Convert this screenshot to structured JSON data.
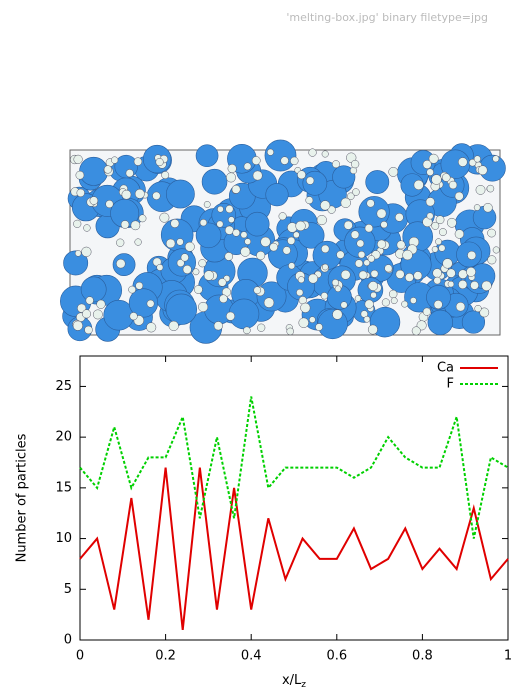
{
  "header": "'melting-box.jpg' binary filetype=jpg",
  "chart_data": {
    "type": "line",
    "ylabel": "Number of particles",
    "xlabel": {
      "text": "x/L",
      "subscript": "z"
    },
    "x": [
      0,
      0.04,
      0.08,
      0.12,
      0.16,
      0.2,
      0.24,
      0.28,
      0.32,
      0.36,
      0.4,
      0.44,
      0.48,
      0.52,
      0.56,
      0.6,
      0.64,
      0.68,
      0.72,
      0.76,
      0.8,
      0.84,
      0.88,
      0.92,
      0.96,
      1
    ],
    "series": [
      {
        "name": "Ca",
        "color": "#e00000",
        "dashed": false,
        "values": [
          8,
          10,
          3,
          14,
          2,
          17,
          1,
          17,
          3,
          15,
          3,
          12,
          6,
          10,
          8,
          8,
          11,
          7,
          8,
          11,
          7,
          9,
          7,
          13,
          6,
          8
        ]
      },
      {
        "name": "F",
        "color": "#00d000",
        "dashed": true,
        "values": [
          17,
          15,
          21,
          15,
          18,
          18,
          22,
          12,
          20,
          12,
          24,
          15,
          17,
          17,
          17,
          17,
          16,
          17,
          20,
          18,
          17,
          17,
          22,
          10,
          18,
          17
        ]
      }
    ],
    "xlim": [
      0,
      1
    ],
    "xticks": [
      0,
      0.2,
      0.4,
      0.6,
      0.8,
      1
    ],
    "ylim": [
      0,
      28
    ],
    "yticks": [
      0,
      5,
      10,
      15,
      20,
      25
    ],
    "legend": "top-right"
  }
}
